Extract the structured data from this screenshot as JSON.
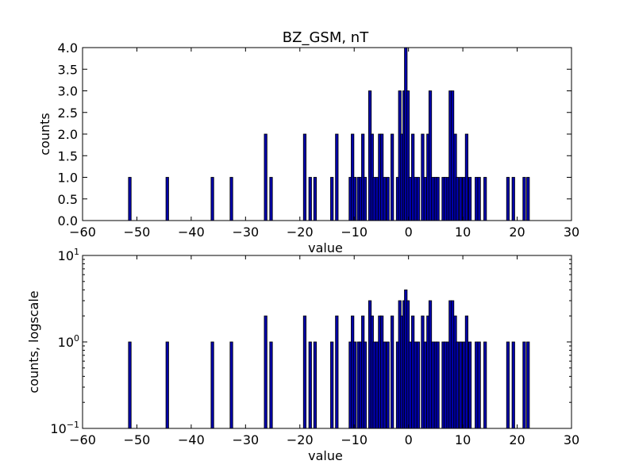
{
  "figure": {
    "title": "BZ_GSM, nT"
  },
  "chart_data": [
    {
      "type": "bar",
      "title": "BZ_GSM, nT",
      "xlabel": "value",
      "ylabel": "counts",
      "xlim": [
        -60,
        30
      ],
      "ylim": [
        0,
        4
      ],
      "yscale": "linear",
      "grid": false,
      "xticks": [
        "−60",
        "−50",
        "−40",
        "−30",
        "−20",
        "−10",
        "0",
        "10",
        "20",
        "30"
      ],
      "yticks": [
        "0.0",
        "0.5",
        "1.0",
        "1.5",
        "2.0",
        "2.5",
        "3.0",
        "3.5",
        "4.0"
      ],
      "bar_color": "#0000aa",
      "bars": [
        {
          "x": -51.3,
          "count": 1
        },
        {
          "x": -44.4,
          "count": 1
        },
        {
          "x": -36.1,
          "count": 1
        },
        {
          "x": -32.6,
          "count": 1
        },
        {
          "x": -26.3,
          "count": 2
        },
        {
          "x": -25.3,
          "count": 1
        },
        {
          "x": -19.1,
          "count": 2
        },
        {
          "x": -18.1,
          "count": 1
        },
        {
          "x": -17.2,
          "count": 1
        },
        {
          "x": -14.1,
          "count": 1
        },
        {
          "x": -13.2,
          "count": 2
        },
        {
          "x": -10.7,
          "count": 1
        },
        {
          "x": -10.3,
          "count": 2
        },
        {
          "x": -9.9,
          "count": 1
        },
        {
          "x": -9.2,
          "count": 1
        },
        {
          "x": -8.8,
          "count": 1
        },
        {
          "x": -8.4,
          "count": 2
        },
        {
          "x": -8.0,
          "count": 1
        },
        {
          "x": -7.1,
          "count": 3
        },
        {
          "x": -6.7,
          "count": 2
        },
        {
          "x": -6.3,
          "count": 1
        },
        {
          "x": -5.8,
          "count": 1
        },
        {
          "x": -5.3,
          "count": 2
        },
        {
          "x": -4.9,
          "count": 2
        },
        {
          "x": -4.4,
          "count": 1
        },
        {
          "x": -3.8,
          "count": 1
        },
        {
          "x": -3.0,
          "count": 2
        },
        {
          "x": -2.0,
          "count": 1
        },
        {
          "x": -1.6,
          "count": 3
        },
        {
          "x": -1.2,
          "count": 2
        },
        {
          "x": -0.8,
          "count": 3
        },
        {
          "x": -0.5,
          "count": 4
        },
        {
          "x": -0.1,
          "count": 3
        },
        {
          "x": 0.3,
          "count": 1
        },
        {
          "x": 0.8,
          "count": 2
        },
        {
          "x": 1.3,
          "count": 1
        },
        {
          "x": 1.8,
          "count": 1
        },
        {
          "x": 2.6,
          "count": 2
        },
        {
          "x": 3.1,
          "count": 1
        },
        {
          "x": 3.6,
          "count": 2
        },
        {
          "x": 4.0,
          "count": 3
        },
        {
          "x": 4.5,
          "count": 1
        },
        {
          "x": 5.0,
          "count": 1
        },
        {
          "x": 5.4,
          "count": 1
        },
        {
          "x": 6.4,
          "count": 1
        },
        {
          "x": 6.8,
          "count": 1
        },
        {
          "x": 7.3,
          "count": 1
        },
        {
          "x": 7.7,
          "count": 3
        },
        {
          "x": 8.1,
          "count": 3
        },
        {
          "x": 8.6,
          "count": 2
        },
        {
          "x": 9.0,
          "count": 1
        },
        {
          "x": 9.6,
          "count": 1
        },
        {
          "x": 10.2,
          "count": 1
        },
        {
          "x": 10.7,
          "count": 2
        },
        {
          "x": 11.3,
          "count": 1
        },
        {
          "x": 12.5,
          "count": 1
        },
        {
          "x": 13.0,
          "count": 1
        },
        {
          "x": 14.1,
          "count": 1
        },
        {
          "x": 18.3,
          "count": 1
        },
        {
          "x": 19.3,
          "count": 1
        },
        {
          "x": 21.3,
          "count": 1
        },
        {
          "x": 22.0,
          "count": 1
        }
      ]
    },
    {
      "type": "bar",
      "title": "",
      "xlabel": "value",
      "ylabel": "counts, logscale",
      "xlim": [
        -60,
        30
      ],
      "ylim": [
        0.1,
        10
      ],
      "yscale": "log",
      "grid": false,
      "xticks": [
        "−60",
        "−50",
        "−40",
        "−30",
        "−20",
        "−10",
        "0",
        "10",
        "20",
        "30"
      ],
      "yticks": [
        {
          "base": "10",
          "exp": "−1"
        },
        {
          "base": "10",
          "exp": "0"
        },
        {
          "base": "10",
          "exp": "1"
        }
      ],
      "bar_color": "#0000aa",
      "same_bars_as": 0
    }
  ]
}
